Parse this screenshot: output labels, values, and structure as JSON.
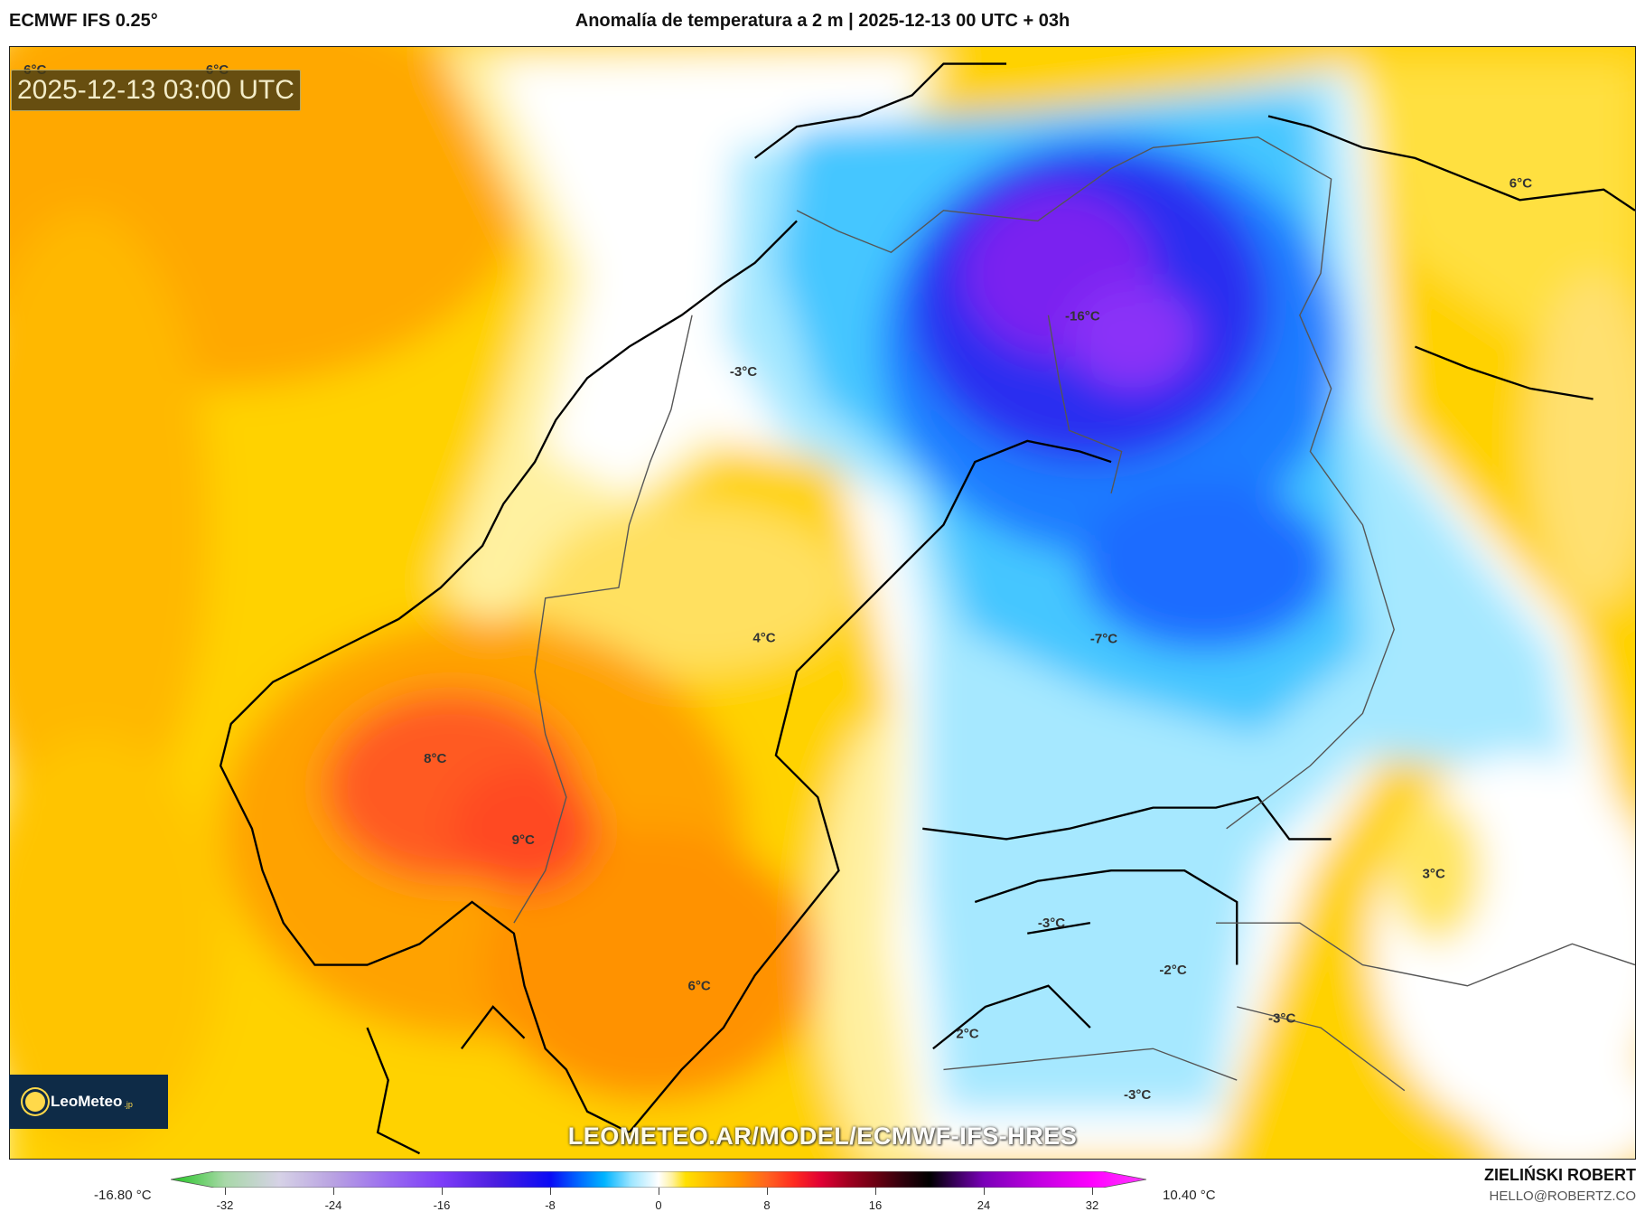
{
  "header": {
    "model": "ECMWF IFS 0.25°",
    "title": "Anomalía de temperatura a 2 m | 2025-12-13 00 UTC + 03h"
  },
  "map": {
    "timestamp": "2025-12-13 03:00 UTC",
    "watermark": "LEOMETEO.AR/MODEL/ECMWF-IFS-HRES",
    "logo_text": "LeoMeteo",
    "logo_suffix": ".jp",
    "labels": [
      {
        "text": "6°C"
      },
      {
        "text": "6°C"
      },
      {
        "text": "-3°C"
      },
      {
        "text": "-16°C"
      },
      {
        "text": "6°C"
      },
      {
        "text": "4°C"
      },
      {
        "text": "-7°C"
      },
      {
        "text": "8°C"
      },
      {
        "text": "9°C"
      },
      {
        "text": "6°C"
      },
      {
        "text": "3°C"
      },
      {
        "text": "-3°C"
      },
      {
        "text": "-2°C"
      },
      {
        "text": "-3°C"
      },
      {
        "text": "2°C"
      },
      {
        "text": "-3°C"
      }
    ]
  },
  "colorbar": {
    "min_label": "-16.80 °C",
    "max_label": "10.40 °C",
    "ticks": [
      "-32",
      "-24",
      "-16",
      "-8",
      "0",
      "8",
      "16",
      "24",
      "32"
    ],
    "range": [
      -36,
      36
    ],
    "stops": [
      {
        "v": -36,
        "c": "#1fc51f"
      },
      {
        "v": -32,
        "c": "#a8d8a8"
      },
      {
        "v": -28,
        "c": "#d6d2e6"
      },
      {
        "v": -24,
        "c": "#b9a2e2"
      },
      {
        "v": -20,
        "c": "#9a6cf0"
      },
      {
        "v": -16,
        "c": "#7d3cf8"
      },
      {
        "v": -12,
        "c": "#4a1ee0"
      },
      {
        "v": -8,
        "c": "#0a0af5"
      },
      {
        "v": -6,
        "c": "#0064ff"
      },
      {
        "v": -4,
        "c": "#00b4ff"
      },
      {
        "v": -2,
        "c": "#9fe6ff"
      },
      {
        "v": 0,
        "c": "#ffffff"
      },
      {
        "v": 1,
        "c": "#fff2a0"
      },
      {
        "v": 2,
        "c": "#ffe000"
      },
      {
        "v": 4,
        "c": "#ffb800"
      },
      {
        "v": 6,
        "c": "#ff9400"
      },
      {
        "v": 8,
        "c": "#ff6420"
      },
      {
        "v": 10,
        "c": "#ff2a20"
      },
      {
        "v": 12,
        "c": "#e00034"
      },
      {
        "v": 14,
        "c": "#a00020"
      },
      {
        "v": 16,
        "c": "#6c0012"
      },
      {
        "v": 18,
        "c": "#30000c"
      },
      {
        "v": 20,
        "c": "#000000"
      },
      {
        "v": 22,
        "c": "#3c0060"
      },
      {
        "v": 24,
        "c": "#7a00b8"
      },
      {
        "v": 28,
        "c": "#c000e0"
      },
      {
        "v": 32,
        "c": "#ff00ff"
      },
      {
        "v": 36,
        "c": "#ff3cff"
      }
    ]
  },
  "footer": {
    "author": "ZIELIŃSKI ROBERT",
    "email": "HELLO@ROBERTZ.CO"
  }
}
